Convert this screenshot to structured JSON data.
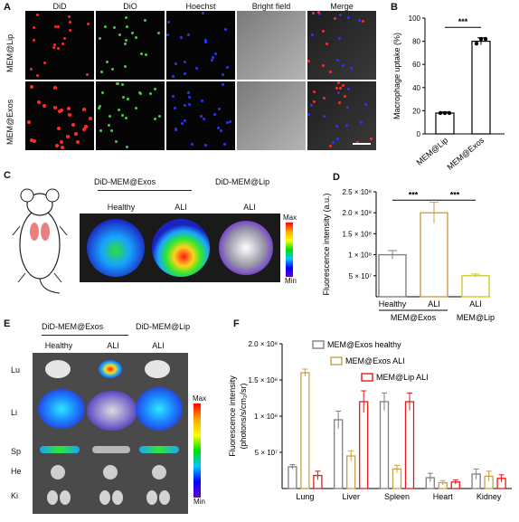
{
  "panel_letters": {
    "a": "A",
    "b": "B",
    "c": "C",
    "d": "D",
    "e": "E",
    "f": "F"
  },
  "panelA": {
    "columns": [
      "DiD",
      "DiO",
      "Hoechst",
      "Bright field",
      "Merge"
    ],
    "rows": [
      "MEM@Lip",
      "MEM@Exos"
    ]
  },
  "panelC": {
    "header_exos": "DiD-MEM@Exos",
    "header_lip": "DiD-MEM@Lip",
    "col_labels": [
      "Healthy",
      "ALI",
      "ALI"
    ],
    "scale_max": "Max",
    "scale_min": "Min"
  },
  "panelE": {
    "header_exos": "DiD-MEM@Exos",
    "header_lip": "DiD-MEM@Lip",
    "col_labels": [
      "Healthy",
      "ALI",
      "ALI"
    ],
    "organs": [
      "Lu",
      "Li",
      "Sp",
      "He",
      "Ki"
    ],
    "scale_max": "Max",
    "scale_min": "Min"
  },
  "colors": {
    "hoechst_blue": "#2a35ff",
    "did_red": "#ff2a2a",
    "dio_green": "#3fd03f",
    "healthy_gray": "#7f7f7f",
    "ali_gold": "#c8a04a",
    "lip_red": "#e41a1c",
    "lip_yellow": "#cccc33"
  },
  "chart_data": [
    {
      "id": "B",
      "type": "bar",
      "categories": [
        "MEM@Lip",
        "MEM@Exos"
      ],
      "values": [
        18,
        80
      ],
      "errors": [
        1,
        3
      ],
      "points": [
        [
          18,
          18,
          18
        ],
        [
          78,
          82,
          82
        ]
      ],
      "ylabel": "Macrophage uptake (%)",
      "ylim": [
        0,
        100
      ],
      "yticks": [
        "0",
        "20",
        "40",
        "60",
        "80",
        "100"
      ],
      "significance": "***"
    },
    {
      "id": "D",
      "type": "bar",
      "categories": [
        "Healthy",
        "ALI",
        "ALI"
      ],
      "group_labels": [
        "MEM@Exos",
        "MEM@Lip"
      ],
      "values": [
        100000000,
        200000000,
        50000000
      ],
      "errors": [
        10000000,
        25000000,
        4000000
      ],
      "ylabel": "Fluorescence intensity (a.u.)",
      "yticks": [
        "5 × 10⁷",
        "1 × 10⁸",
        "1.5 × 10⁸",
        "2.0 × 10⁸",
        "2.5 × 10⁸"
      ],
      "ylim": [
        0,
        250000000
      ],
      "significance": [
        "***",
        "***"
      ]
    },
    {
      "id": "F",
      "type": "bar",
      "categories": [
        "Lung",
        "Liver",
        "Spleen",
        "Heart",
        "Kidney"
      ],
      "series": [
        {
          "name": "MEM@Exos healthy",
          "values": [
            30000000,
            95000000,
            120000000,
            15000000,
            20000000
          ],
          "errors": [
            3000000,
            12000000,
            12000000,
            6000000,
            7000000
          ]
        },
        {
          "name": "MEM@Exos ALI",
          "values": [
            160000000,
            45000000,
            27000000,
            8000000,
            17000000
          ],
          "errors": [
            5000000,
            7000000,
            5000000,
            3000000,
            7000000
          ]
        },
        {
          "name": "MEM@Lip ALI",
          "values": [
            18000000,
            120000000,
            120000000,
            9000000,
            14000000
          ],
          "errors": [
            6000000,
            15000000,
            12000000,
            3000000,
            5000000
          ]
        }
      ],
      "ylabel": "Fluorescence intensity",
      "ylabel2": "(photons/s/cm₂/sr)",
      "yticks": [
        "5 × 10⁷",
        "1 × 10⁸",
        "1.5 × 10⁸",
        "2.0 × 10⁸"
      ],
      "ylim": [
        0,
        200000000
      ]
    }
  ]
}
